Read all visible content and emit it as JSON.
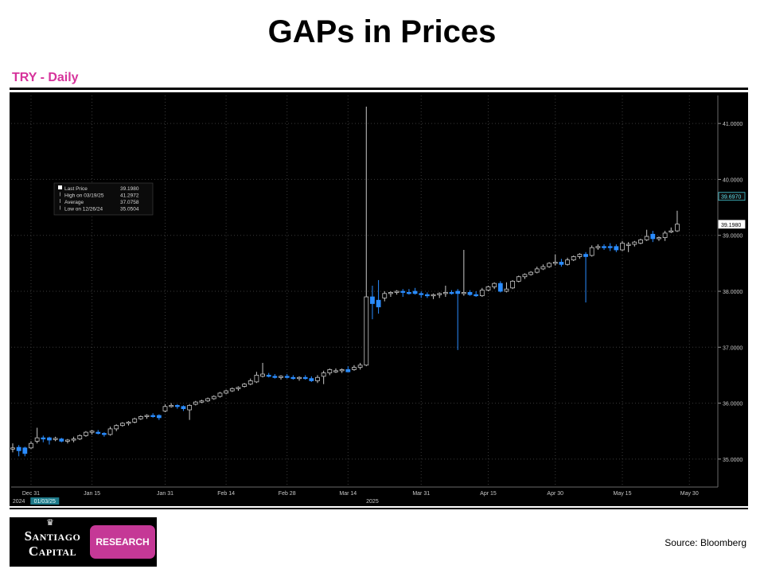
{
  "page": {
    "title": "GAPs in Prices",
    "subtitle": "TRY - Daily",
    "source": "Source: Bloomberg",
    "logo": {
      "line1": "Santiago",
      "line2": "Capital",
      "badge": "RESEARCH"
    }
  },
  "chart_data": {
    "type": "candlestick",
    "title": "",
    "xlabel": "",
    "ylabel": "",
    "ylim": [
      34.5,
      41.5
    ],
    "y_ticks": [
      35,
      36,
      37,
      38,
      39,
      40,
      41
    ],
    "y_tick_labels": [
      "35.0000",
      "36.0000",
      "37.0000",
      "38.0000",
      "39.0000",
      "40.0000",
      "41.0000"
    ],
    "x_ticks": [
      {
        "label": "Dec 31",
        "index": 3
      },
      {
        "label": "Jan 15",
        "index": 13
      },
      {
        "label": "Jan 31",
        "index": 25
      },
      {
        "label": "Feb 14",
        "index": 35
      },
      {
        "label": "Feb 28",
        "index": 45
      },
      {
        "label": "Mar 14",
        "index": 55
      },
      {
        "label": "Mar 31",
        "index": 67
      },
      {
        "label": "Apr 15",
        "index": 78
      },
      {
        "label": "Apr 30",
        "index": 89
      },
      {
        "label": "May 15",
        "index": 100
      },
      {
        "label": "May 30",
        "index": 111
      }
    ],
    "year_labels": [
      {
        "label": "2024",
        "index": 1
      },
      {
        "label": "2025",
        "index": 59
      }
    ],
    "date_marker": {
      "label": "01/03/25",
      "index": 5
    },
    "grid": true,
    "background": "#000000",
    "up_color": "#000000",
    "up_edge": "#c8c8c8",
    "down_color": "#2a8cff",
    "legend": {
      "position": "top-left",
      "items": [
        {
          "label": "Last Price",
          "value": "39.1980"
        },
        {
          "label": "High on 03/19/25",
          "value": "41.2972"
        },
        {
          "label": "Average",
          "value": "37.0758"
        },
        {
          "label": "Low on 12/26/24",
          "value": "35.0504"
        }
      ]
    },
    "price_tags": [
      {
        "label": "39.6970",
        "value": 39.697,
        "style": "cyan"
      },
      {
        "label": "39.1980",
        "value": 39.198,
        "style": "white"
      }
    ],
    "candles": [
      {
        "o": 35.2,
        "h": 35.28,
        "l": 35.12,
        "c": 35.2
      },
      {
        "o": 35.21,
        "h": 35.25,
        "l": 35.05,
        "c": 35.15
      },
      {
        "o": 35.2,
        "h": 35.22,
        "l": 35.05,
        "c": 35.1
      },
      {
        "o": 35.2,
        "h": 35.32,
        "l": 35.18,
        "c": 35.28
      },
      {
        "o": 35.32,
        "h": 35.56,
        "l": 35.28,
        "c": 35.38
      },
      {
        "o": 35.38,
        "h": 35.42,
        "l": 35.3,
        "c": 35.36
      },
      {
        "o": 35.38,
        "h": 35.4,
        "l": 35.26,
        "c": 35.34
      },
      {
        "o": 35.36,
        "h": 35.4,
        "l": 35.32,
        "c": 35.37
      },
      {
        "o": 35.36,
        "h": 35.38,
        "l": 35.3,
        "c": 35.32
      },
      {
        "o": 35.32,
        "h": 35.36,
        "l": 35.28,
        "c": 35.34
      },
      {
        "o": 35.34,
        "h": 35.4,
        "l": 35.3,
        "c": 35.36
      },
      {
        "o": 35.36,
        "h": 35.44,
        "l": 35.34,
        "c": 35.42
      },
      {
        "o": 35.42,
        "h": 35.5,
        "l": 35.4,
        "c": 35.48
      },
      {
        "o": 35.48,
        "h": 35.52,
        "l": 35.44,
        "c": 35.5
      },
      {
        "o": 35.48,
        "h": 35.52,
        "l": 35.44,
        "c": 35.46
      },
      {
        "o": 35.46,
        "h": 35.48,
        "l": 35.4,
        "c": 35.44
      },
      {
        "o": 35.44,
        "h": 35.58,
        "l": 35.42,
        "c": 35.54
      },
      {
        "o": 35.54,
        "h": 35.62,
        "l": 35.5,
        "c": 35.6
      },
      {
        "o": 35.6,
        "h": 35.66,
        "l": 35.58,
        "c": 35.64
      },
      {
        "o": 35.64,
        "h": 35.68,
        "l": 35.6,
        "c": 35.66
      },
      {
        "o": 35.66,
        "h": 35.74,
        "l": 35.64,
        "c": 35.72
      },
      {
        "o": 35.72,
        "h": 35.78,
        "l": 35.7,
        "c": 35.76
      },
      {
        "o": 35.76,
        "h": 35.8,
        "l": 35.72,
        "c": 35.78
      },
      {
        "o": 35.78,
        "h": 35.82,
        "l": 35.74,
        "c": 35.76
      },
      {
        "o": 35.78,
        "h": 35.8,
        "l": 35.7,
        "c": 35.74
      },
      {
        "o": 35.86,
        "h": 35.98,
        "l": 35.84,
        "c": 35.94
      },
      {
        "o": 35.96,
        "h": 36.0,
        "l": 35.92,
        "c": 35.96
      },
      {
        "o": 35.96,
        "h": 35.98,
        "l": 35.9,
        "c": 35.94
      },
      {
        "o": 35.94,
        "h": 35.96,
        "l": 35.86,
        "c": 35.9
      },
      {
        "o": 35.88,
        "h": 35.98,
        "l": 35.7,
        "c": 35.96
      },
      {
        "o": 35.98,
        "h": 36.04,
        "l": 35.96,
        "c": 36.02
      },
      {
        "o": 36.02,
        "h": 36.06,
        "l": 36.0,
        "c": 36.04
      },
      {
        "o": 36.04,
        "h": 36.1,
        "l": 36.02,
        "c": 36.08
      },
      {
        "o": 36.08,
        "h": 36.14,
        "l": 36.06,
        "c": 36.12
      },
      {
        "o": 36.12,
        "h": 36.2,
        "l": 36.1,
        "c": 36.18
      },
      {
        "o": 36.18,
        "h": 36.24,
        "l": 36.16,
        "c": 36.22
      },
      {
        "o": 36.22,
        "h": 36.28,
        "l": 36.2,
        "c": 36.26
      },
      {
        "o": 36.26,
        "h": 36.3,
        "l": 36.22,
        "c": 36.28
      },
      {
        "o": 36.3,
        "h": 36.36,
        "l": 36.28,
        "c": 36.34
      },
      {
        "o": 36.34,
        "h": 36.44,
        "l": 36.32,
        "c": 36.4
      },
      {
        "o": 36.38,
        "h": 36.56,
        "l": 36.36,
        "c": 36.5
      },
      {
        "o": 36.48,
        "h": 36.72,
        "l": 36.46,
        "c": 36.52
      },
      {
        "o": 36.5,
        "h": 36.54,
        "l": 36.46,
        "c": 36.48
      },
      {
        "o": 36.48,
        "h": 36.52,
        "l": 36.44,
        "c": 36.46
      },
      {
        "o": 36.46,
        "h": 36.5,
        "l": 36.42,
        "c": 36.48
      },
      {
        "o": 36.48,
        "h": 36.52,
        "l": 36.44,
        "c": 36.46
      },
      {
        "o": 36.46,
        "h": 36.5,
        "l": 36.42,
        "c": 36.44
      },
      {
        "o": 36.44,
        "h": 36.48,
        "l": 36.4,
        "c": 36.46
      },
      {
        "o": 36.46,
        "h": 36.5,
        "l": 36.42,
        "c": 36.44
      },
      {
        "o": 36.44,
        "h": 36.48,
        "l": 36.38,
        "c": 36.4
      },
      {
        "o": 36.4,
        "h": 36.5,
        "l": 36.36,
        "c": 36.46
      },
      {
        "o": 36.48,
        "h": 36.58,
        "l": 36.34,
        "c": 36.54
      },
      {
        "o": 36.54,
        "h": 36.62,
        "l": 36.5,
        "c": 36.6
      },
      {
        "o": 36.58,
        "h": 36.62,
        "l": 36.54,
        "c": 36.58
      },
      {
        "o": 36.58,
        "h": 36.62,
        "l": 36.54,
        "c": 36.6
      },
      {
        "o": 36.6,
        "h": 36.66,
        "l": 36.56,
        "c": 36.56
      },
      {
        "o": 36.6,
        "h": 36.68,
        "l": 36.58,
        "c": 36.64
      },
      {
        "o": 36.64,
        "h": 36.72,
        "l": 36.6,
        "c": 36.68
      },
      {
        "o": 36.68,
        "h": 41.3,
        "l": 36.66,
        "c": 37.9
      },
      {
        "o": 37.9,
        "h": 38.1,
        "l": 37.5,
        "c": 37.78
      },
      {
        "o": 37.84,
        "h": 38.2,
        "l": 37.6,
        "c": 37.72
      },
      {
        "o": 37.88,
        "h": 38.0,
        "l": 37.82,
        "c": 37.96
      },
      {
        "o": 37.96,
        "h": 38.0,
        "l": 37.9,
        "c": 37.98
      },
      {
        "o": 37.98,
        "h": 38.02,
        "l": 37.94,
        "c": 38.0
      },
      {
        "o": 38.0,
        "h": 38.04,
        "l": 37.9,
        "c": 37.98
      },
      {
        "o": 37.98,
        "h": 38.04,
        "l": 37.94,
        "c": 37.96
      },
      {
        "o": 38.0,
        "h": 38.06,
        "l": 37.94,
        "c": 37.96
      },
      {
        "o": 37.96,
        "h": 38.0,
        "l": 37.88,
        "c": 37.94
      },
      {
        "o": 37.94,
        "h": 37.98,
        "l": 37.88,
        "c": 37.92
      },
      {
        "o": 37.92,
        "h": 37.96,
        "l": 37.86,
        "c": 37.94
      },
      {
        "o": 37.94,
        "h": 37.98,
        "l": 37.88,
        "c": 37.96
      },
      {
        "o": 37.96,
        "h": 38.1,
        "l": 37.9,
        "c": 37.98
      },
      {
        "o": 37.98,
        "h": 38.02,
        "l": 37.94,
        "c": 37.96
      },
      {
        "o": 38.0,
        "h": 38.04,
        "l": 36.95,
        "c": 37.96
      },
      {
        "o": 37.96,
        "h": 38.74,
        "l": 37.92,
        "c": 37.98
      },
      {
        "o": 37.98,
        "h": 38.02,
        "l": 37.92,
        "c": 37.94
      },
      {
        "o": 37.94,
        "h": 38.0,
        "l": 37.9,
        "c": 37.92
      },
      {
        "o": 37.92,
        "h": 38.06,
        "l": 37.9,
        "c": 38.02
      },
      {
        "o": 38.02,
        "h": 38.1,
        "l": 38.0,
        "c": 38.08
      },
      {
        "o": 38.08,
        "h": 38.16,
        "l": 38.04,
        "c": 38.14
      },
      {
        "o": 38.14,
        "h": 38.18,
        "l": 37.98,
        "c": 38.0
      },
      {
        "o": 38.0,
        "h": 38.16,
        "l": 37.98,
        "c": 38.04
      },
      {
        "o": 38.06,
        "h": 38.2,
        "l": 38.04,
        "c": 38.18
      },
      {
        "o": 38.18,
        "h": 38.28,
        "l": 38.16,
        "c": 38.26
      },
      {
        "o": 38.26,
        "h": 38.32,
        "l": 38.22,
        "c": 38.3
      },
      {
        "o": 38.3,
        "h": 38.36,
        "l": 38.28,
        "c": 38.34
      },
      {
        "o": 38.34,
        "h": 38.44,
        "l": 38.32,
        "c": 38.4
      },
      {
        "o": 38.4,
        "h": 38.48,
        "l": 38.38,
        "c": 38.44
      },
      {
        "o": 38.44,
        "h": 38.52,
        "l": 38.42,
        "c": 38.5
      },
      {
        "o": 38.5,
        "h": 38.66,
        "l": 38.46,
        "c": 38.52
      },
      {
        "o": 38.52,
        "h": 38.58,
        "l": 38.44,
        "c": 38.48
      },
      {
        "o": 38.48,
        "h": 38.6,
        "l": 38.46,
        "c": 38.56
      },
      {
        "o": 38.56,
        "h": 38.64,
        "l": 38.54,
        "c": 38.62
      },
      {
        "o": 38.62,
        "h": 38.68,
        "l": 38.58,
        "c": 38.66
      },
      {
        "o": 38.66,
        "h": 38.7,
        "l": 37.8,
        "c": 38.62
      },
      {
        "o": 38.64,
        "h": 38.82,
        "l": 38.62,
        "c": 38.78
      },
      {
        "o": 38.78,
        "h": 38.84,
        "l": 38.74,
        "c": 38.8
      },
      {
        "o": 38.8,
        "h": 38.84,
        "l": 38.74,
        "c": 38.78
      },
      {
        "o": 38.8,
        "h": 38.86,
        "l": 38.72,
        "c": 38.78
      },
      {
        "o": 38.8,
        "h": 38.84,
        "l": 38.7,
        "c": 38.74
      },
      {
        "o": 38.74,
        "h": 38.9,
        "l": 38.72,
        "c": 38.86
      },
      {
        "o": 38.82,
        "h": 38.88,
        "l": 38.7,
        "c": 38.84
      },
      {
        "o": 38.84,
        "h": 38.9,
        "l": 38.8,
        "c": 38.88
      },
      {
        "o": 38.86,
        "h": 38.94,
        "l": 38.84,
        "c": 38.92
      },
      {
        "o": 38.92,
        "h": 39.1,
        "l": 38.9,
        "c": 38.98
      },
      {
        "o": 39.02,
        "h": 39.08,
        "l": 38.88,
        "c": 38.94
      },
      {
        "o": 38.94,
        "h": 38.98,
        "l": 38.9,
        "c": 38.96
      },
      {
        "o": 38.96,
        "h": 39.08,
        "l": 38.9,
        "c": 39.04
      },
      {
        "o": 39.06,
        "h": 39.14,
        "l": 39.04,
        "c": 39.08
      },
      {
        "o": 39.08,
        "h": 39.44,
        "l": 39.06,
        "c": 39.2
      }
    ]
  }
}
